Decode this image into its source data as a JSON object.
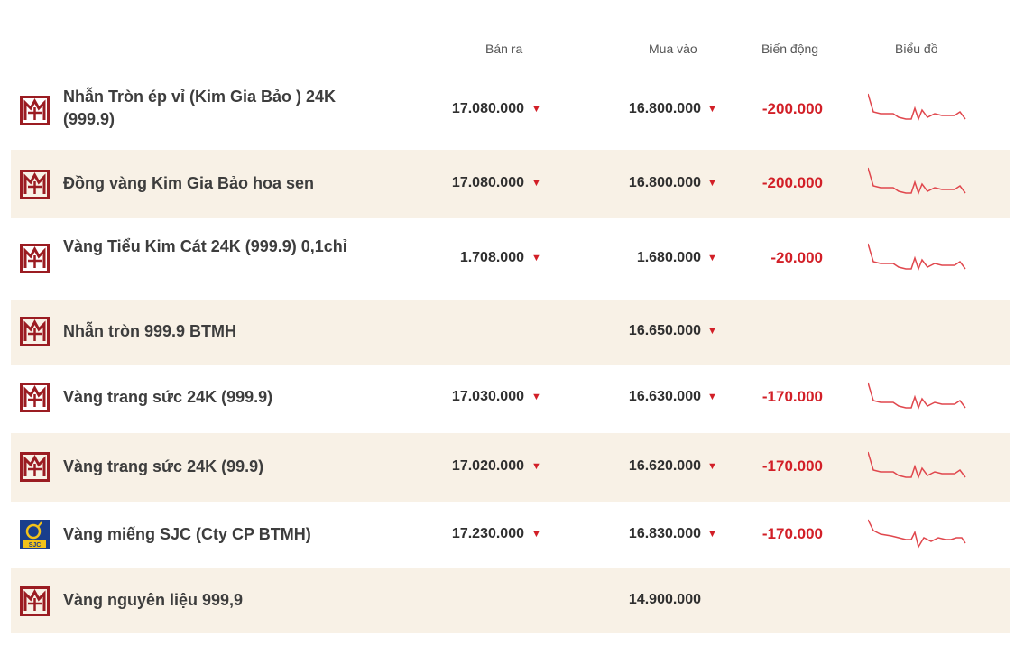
{
  "header": {
    "sell": "Bán ra",
    "buy": "Mua vào",
    "change": "Biến động",
    "chart": "Biểu đồ"
  },
  "colors": {
    "accent": "#d21f27",
    "stripe": "#f8f1e6",
    "logo_btmh": "#9b1c22",
    "logo_sjc": "#1a3e8c"
  },
  "arrow_icon": "down-triangle-icon",
  "rows": [
    {
      "logo": "btmh",
      "name": "Nhẫn Tròn ép vỉ (Kim Gia Bảo ) 24K (999.9)",
      "sell": "17.080.000",
      "buy": "16.800.000",
      "change": "-200.000"
    },
    {
      "logo": "btmh",
      "name": "Đồng vàng Kim Gia Bảo hoa sen",
      "sell": "17.080.000",
      "buy": "16.800.000",
      "change": "-200.000"
    },
    {
      "logo": "btmh",
      "name": "Vàng Tiểu Kim Cát 24K (999.9) 0,1chỉ",
      "sell": "1.708.000",
      "buy": "1.680.000",
      "change": "-20.000"
    },
    {
      "logo": "btmh",
      "name": "Nhẫn tròn 999.9 BTMH",
      "sell": "",
      "buy": "16.650.000",
      "change": ""
    },
    {
      "logo": "btmh",
      "name": "Vàng trang sức 24K (999.9)",
      "sell": "17.030.000",
      "buy": "16.630.000",
      "change": "-170.000"
    },
    {
      "logo": "btmh",
      "name": "Vàng trang sức 24K (99.9)",
      "sell": "17.020.000",
      "buy": "16.620.000",
      "change": "-170.000"
    },
    {
      "logo": "sjc",
      "name": "Vàng miếng SJC (Cty CP BTMH)",
      "sell": "17.230.000",
      "buy": "16.830.000",
      "change": "-170.000"
    },
    {
      "logo": "btmh",
      "name": "Vàng nguyên liệu 999,9",
      "sell": "",
      "buy": "14.900.000",
      "change": ""
    }
  ]
}
